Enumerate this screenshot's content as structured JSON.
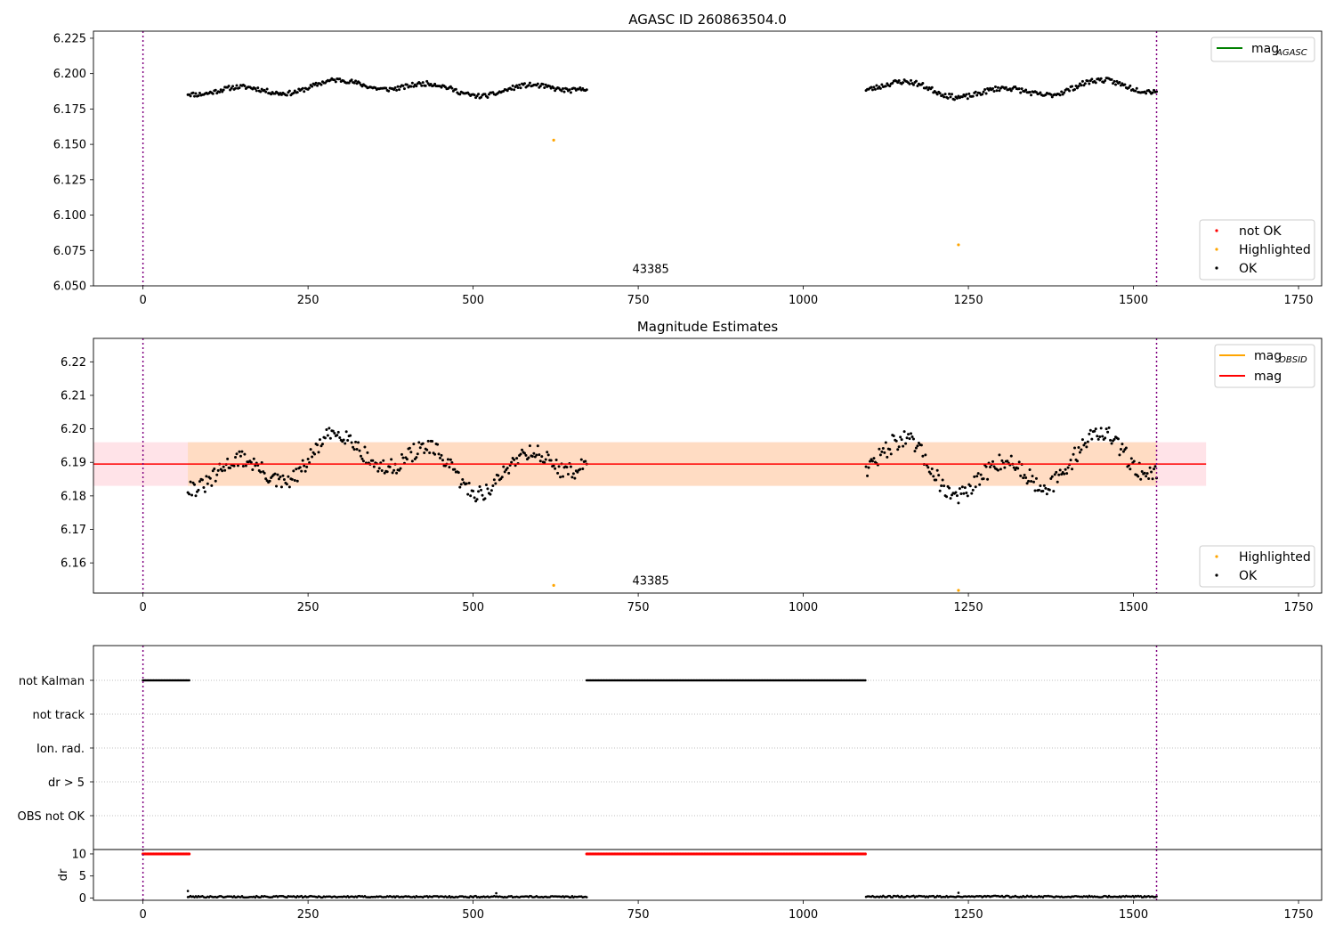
{
  "chart_data": [
    {
      "type": "scatter",
      "title": "AGASC ID 260863504.0",
      "xlim": [
        -75,
        1785
      ],
      "ylim": [
        6.05,
        6.23
      ],
      "x_ticks": [
        0,
        250,
        500,
        750,
        1000,
        1250,
        1500,
        1750
      ],
      "y_ticks": [
        6.05,
        6.075,
        6.1,
        6.125,
        6.15,
        6.175,
        6.2,
        6.225
      ],
      "y_tick_labels": [
        "6.050",
        "6.075",
        "6.100",
        "6.125",
        "6.150",
        "6.175",
        "6.200",
        "6.225"
      ],
      "vlines": [
        0,
        1535
      ],
      "annotation": {
        "text": "43385",
        "x": 768,
        "y": 6.054
      },
      "legend_lines": [
        {
          "label": "mag",
          "sub": "AGASC",
          "color": "#008000"
        }
      ],
      "legend_markers": [
        {
          "label": "not OK",
          "color": "#ff0000"
        },
        {
          "label": "Highlighted",
          "color": "#ffa500"
        },
        {
          "label": "OK",
          "color": "#000000"
        }
      ],
      "segments": [
        {
          "x_start": 68,
          "x_end": 672,
          "center": 6.19,
          "amplitude": 0.007,
          "seed": 11
        },
        {
          "x_start": 1095,
          "x_end": 1535,
          "center": 6.189,
          "amplitude": 0.008,
          "seed": 23
        }
      ],
      "highlighted": [
        {
          "x": 622,
          "y": 6.153
        },
        {
          "x": 1235,
          "y": 6.079
        }
      ]
    },
    {
      "type": "scatter",
      "title": "Magnitude Estimates",
      "xlim": [
        -75,
        1785
      ],
      "ylim": [
        6.151,
        6.227
      ],
      "x_ticks": [
        0,
        250,
        500,
        750,
        1000,
        1250,
        1500,
        1750
      ],
      "y_ticks": [
        6.16,
        6.17,
        6.18,
        6.19,
        6.2,
        6.21,
        6.22
      ],
      "y_tick_labels": [
        "6.16",
        "6.17",
        "6.18",
        "6.19",
        "6.20",
        "6.21",
        "6.22"
      ],
      "vlines": [
        0,
        1535
      ],
      "annotation": {
        "text": "43385",
        "x": 768,
        "y": 6.153
      },
      "mag_line": {
        "value": 6.1895,
        "x_start": -75,
        "x_end": 1610,
        "color": "#ff0000"
      },
      "band_outer": {
        "low": 6.183,
        "high": 6.196,
        "x_start": -75,
        "x_end": 1610,
        "color": "#ffc0cb"
      },
      "band_inner": {
        "low": 6.183,
        "high": 6.196,
        "x_start": 68,
        "x_end": 1535,
        "color": "#ffdab9"
      },
      "legend_lines": [
        {
          "label": "mag",
          "sub": "OBSID",
          "color": "#ffa500"
        },
        {
          "label": "mag",
          "sub": "",
          "color": "#ff0000"
        }
      ],
      "legend_markers": [
        {
          "label": "Highlighted",
          "color": "#ffa500"
        },
        {
          "label": "OK",
          "color": "#000000"
        }
      ],
      "segments": [
        {
          "x_start": 68,
          "x_end": 672,
          "center": 6.19,
          "amplitude": 0.011,
          "seed": 31
        },
        {
          "x_start": 1095,
          "x_end": 1535,
          "center": 6.189,
          "amplitude": 0.012,
          "seed": 47
        }
      ],
      "highlighted": [
        {
          "x": 622,
          "y": 6.1533
        },
        {
          "x": 1235,
          "y": 6.1518
        }
      ]
    },
    {
      "type": "scatter",
      "title": "",
      "xlim": [
        -75,
        1785
      ],
      "categories": [
        "not Kalman",
        "not track",
        "Ion. rad.",
        "dr > 5",
        "OBS not OK"
      ],
      "vlines": [
        0,
        1535
      ],
      "flag_runs": [
        {
          "category": "not Kalman",
          "x_start": 0,
          "x_end": 70
        },
        {
          "category": "not Kalman",
          "x_start": 672,
          "x_end": 1095
        }
      ]
    },
    {
      "type": "scatter",
      "title": "",
      "ylabel": "dr",
      "xlim": [
        -75,
        1785
      ],
      "ylim": [
        -0.5,
        11
      ],
      "y_ticks": [
        0,
        5,
        10
      ],
      "y_tick_labels": [
        "0",
        "5",
        "10"
      ],
      "x_ticks": [
        0,
        250,
        500,
        750,
        1000,
        1250,
        1500,
        1750
      ],
      "vlines": [
        0,
        1535
      ],
      "capped_runs": [
        {
          "x_start": 0,
          "x_end": 70,
          "value": 10
        },
        {
          "x_start": 672,
          "x_end": 1095,
          "value": 10
        }
      ],
      "dr_segments": [
        {
          "x_start": 68,
          "x_end": 672,
          "value": 0.3
        },
        {
          "x_start": 1095,
          "x_end": 1535,
          "value": 0.35
        }
      ],
      "dr_spikes": [
        {
          "x": 68,
          "y": 1.6
        },
        {
          "x": 1235,
          "y": 1.2
        },
        {
          "x": 535,
          "y": 1.1
        }
      ]
    }
  ]
}
